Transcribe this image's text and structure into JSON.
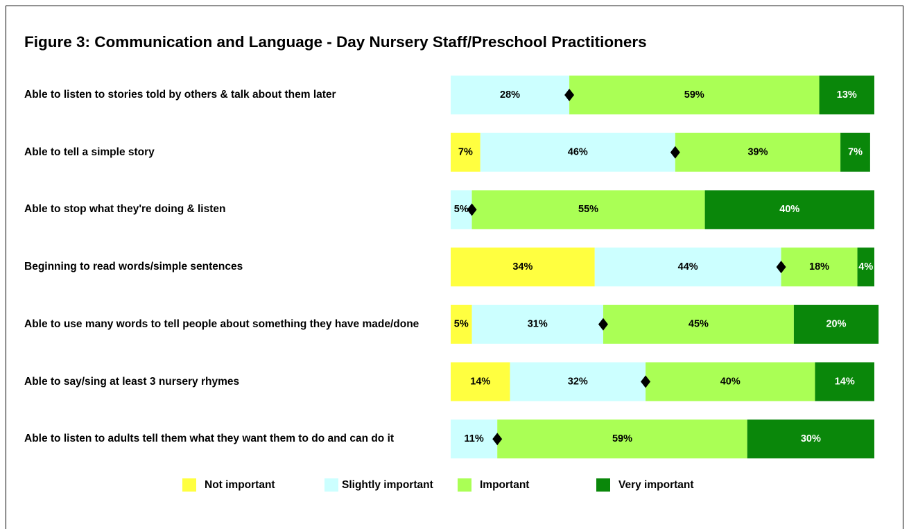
{
  "chart_data": {
    "type": "stacked_bar_horizontal",
    "title": "Figure 3: Communication and Language - Day Nursery Staff/Preschool Practitioners",
    "categories": [
      "Able to listen to stories told by others & talk about them later",
      "Able to tell a simple story",
      "Able to stop what they're doing & listen",
      "Beginning to read words/simple sentences",
      "Able to use many words to tell people about something they have made/done",
      "Able to say/sing at least 3 nursery rhymes",
      "Able to listen to adults tell them what they want them to do and can do it"
    ],
    "xlim": [
      0,
      100
    ],
    "series": [
      {
        "name": "Not important",
        "color": "#ffff40",
        "values": [
          null,
          7,
          null,
          34,
          5,
          14,
          null
        ],
        "value_labels": [
          null,
          "7%",
          null,
          "34%",
          "5%",
          "14%",
          null
        ]
      },
      {
        "name": "Slightly important",
        "color": "#ccffff",
        "values": [
          28,
          46,
          5,
          44,
          31,
          32,
          11
        ],
        "value_labels": [
          "28%",
          "46%",
          "5%",
          "44%",
          "31%",
          "32%",
          "11%"
        ]
      },
      {
        "name": "Important",
        "color": "#aaff55",
        "values": [
          59,
          39,
          55,
          18,
          45,
          40,
          59
        ],
        "value_labels": [
          "59%",
          "39%",
          "55%",
          "18%",
          "45%",
          "40%",
          "59%"
        ]
      },
      {
        "name": "Very important",
        "color": "#0a870a",
        "values": [
          13,
          7,
          40,
          4,
          20,
          14,
          30
        ],
        "value_labels": [
          "13%",
          "7%",
          "40%",
          "4%",
          "20%",
          "14%",
          "30%"
        ]
      }
    ]
  }
}
